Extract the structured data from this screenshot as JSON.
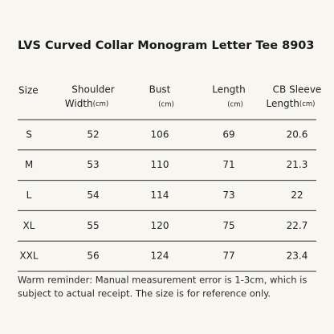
{
  "title": "LVS Curved Collar Monogram Letter Tee 8903",
  "table": {
    "header": [
      {
        "line1": "Size"
      },
      {
        "line1": "Shoulder",
        "line2": "Width",
        "unit": "(cm)"
      },
      {
        "line1": "Bust",
        "unit": "(cm)"
      },
      {
        "line1": "Length",
        "unit": "(cm)"
      },
      {
        "line1": "CB Sleeve",
        "line2": "Length",
        "unit": "(cm)"
      }
    ],
    "rows": [
      [
        "S",
        52,
        106,
        69,
        20.6
      ],
      [
        "M",
        53,
        110,
        71,
        21.3
      ],
      [
        "L",
        54,
        114,
        73,
        22
      ],
      [
        "XL",
        55,
        120,
        75,
        22.7
      ],
      [
        "XXL",
        56,
        124,
        77,
        23.4
      ]
    ]
  },
  "note": {
    "line1": "Warm reminder: Manual measurement error is 1-3cm, which is",
    "line2": "subject to actual receipt. The size is for reference only."
  }
}
